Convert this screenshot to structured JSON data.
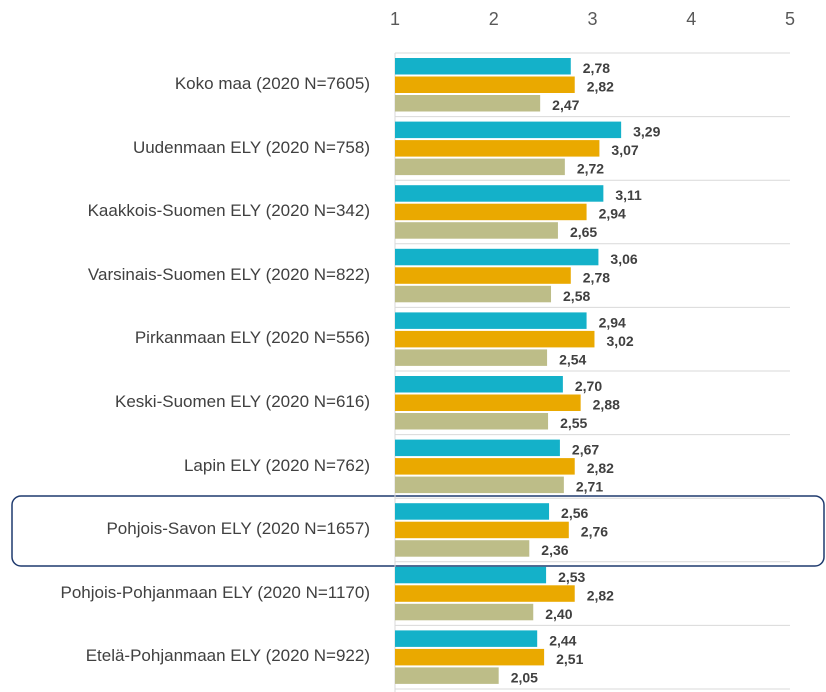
{
  "chart_data": {
    "type": "bar",
    "orientation": "horizontal",
    "categories": [
      "Koko maa (2020 N=7605)",
      "Uudenmaan ELY (2020 N=758)",
      "Kaakkois-Suomen ELY (2020 N=342)",
      "Varsinais-Suomen ELY (2020 N=822)",
      "Pirkanmaan ELY (2020 N=556)",
      "Keski-Suomen ELY (2020 N=616)",
      "Lapin ELY (2020 N=762)",
      "Pohjois-Savon ELY (2020 N=1657)",
      "Pohjois-Pohjanmaan ELY (2020 N=1170)",
      "Etelä-Pohjanmaan ELY (2020 N=922)"
    ],
    "series": [
      {
        "color": "#14b1c9",
        "values": [
          2.78,
          3.29,
          3.11,
          3.06,
          2.94,
          2.7,
          2.67,
          2.56,
          2.53,
          2.44
        ],
        "value_labels": [
          "2,78",
          "3,29",
          "3,11",
          "3,06",
          "2,94",
          "2,70",
          "2,67",
          "2,56",
          "2,53",
          "2,44"
        ]
      },
      {
        "color": "#eaa900",
        "values": [
          2.82,
          3.07,
          2.94,
          2.78,
          3.02,
          2.88,
          2.82,
          2.76,
          2.82,
          2.51
        ],
        "value_labels": [
          "2,82",
          "3,07",
          "2,94",
          "2,78",
          "3,02",
          "2,88",
          "2,82",
          "2,76",
          "2,82",
          "2,51"
        ]
      },
      {
        "color": "#bdbd88",
        "values": [
          2.47,
          2.72,
          2.65,
          2.58,
          2.54,
          2.55,
          2.71,
          2.36,
          2.4,
          2.05
        ],
        "value_labels": [
          "2,47",
          "2,72",
          "2,65",
          "2,58",
          "2,54",
          "2,55",
          "2,71",
          "2,36",
          "2,40",
          "2,05"
        ]
      }
    ],
    "xlim": [
      1,
      5
    ],
    "xticks": [
      1,
      2,
      3,
      4,
      5
    ],
    "grid": false
  }
}
